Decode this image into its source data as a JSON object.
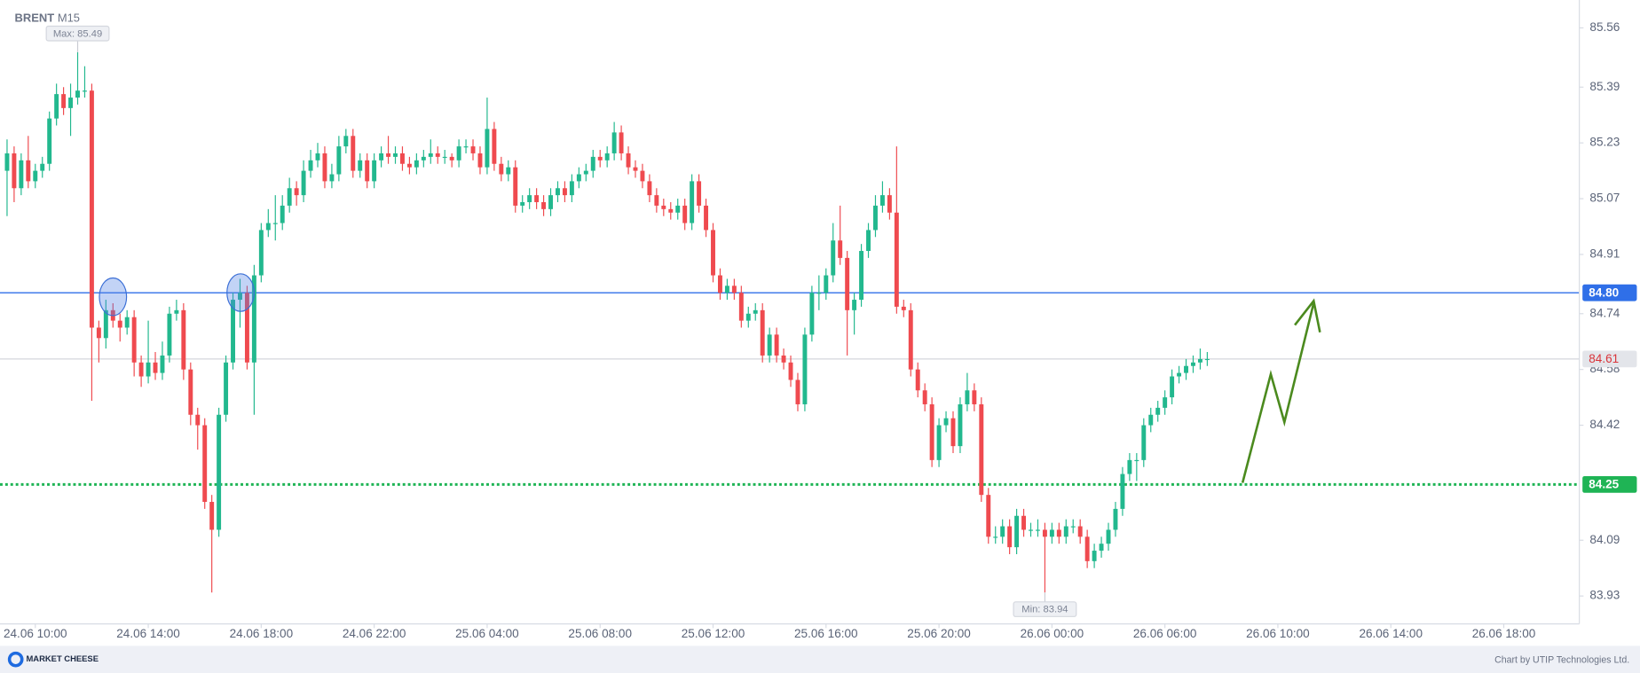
{
  "chart_data": {
    "type": "candlestick",
    "title": "BRENT",
    "subtitle": "M15",
    "footer": "Chart by UTIP Technologies Ltd.",
    "logo": "MARKET CHEESE",
    "up_color": "#22b88e",
    "down_color": "#ef4a4f",
    "xlim": [
      -1,
      222.7
    ],
    "ylim": [
      83.85,
      85.64
    ],
    "yticks": [
      85.56,
      85.39,
      85.23,
      85.07,
      84.91,
      84.74,
      84.58,
      84.42,
      84.09,
      83.93
    ],
    "xticks": [
      {
        "value": 4,
        "label": "24.06 10:00"
      },
      {
        "value": 20,
        "label": "24.06 14:00"
      },
      {
        "value": 36,
        "label": "24.06 18:00"
      },
      {
        "value": 52,
        "label": "24.06 22:00"
      },
      {
        "value": 68,
        "label": "25.06 04:00"
      },
      {
        "value": 84,
        "label": "25.06 08:00"
      },
      {
        "value": 100,
        "label": "25.06 12:00"
      },
      {
        "value": 116,
        "label": "25.06 16:00"
      },
      {
        "value": 132,
        "label": "25.06 20:00"
      },
      {
        "value": 148,
        "label": "26.06 00:00"
      },
      {
        "value": 164,
        "label": "26.06 06:00"
      },
      {
        "value": 180,
        "label": "26.06 10:00"
      },
      {
        "value": 196,
        "label": "26.06 14:00"
      },
      {
        "value": 212,
        "label": "26.06 18:00"
      }
    ],
    "levels": [
      {
        "value": 84.8,
        "label": "84.80",
        "color": "#2f6fe8",
        "style": "solid"
      },
      {
        "value": 84.25,
        "label": "84.25",
        "color": "#1fb455",
        "style": "dotted"
      }
    ],
    "current_price": 84.61,
    "max": {
      "value": 85.49,
      "label": "Max: 85.49"
    },
    "min": {
      "value": 83.94,
      "label": "Min: 83.94"
    },
    "ohlc": [
      [
        85.15,
        85.24,
        85.02,
        85.2
      ],
      [
        85.2,
        85.22,
        85.06,
        85.1
      ],
      [
        85.1,
        85.2,
        85.08,
        85.18
      ],
      [
        85.18,
        85.25,
        85.1,
        85.12
      ],
      [
        85.12,
        85.17,
        85.1,
        85.15
      ],
      [
        85.15,
        85.19,
        85.13,
        85.17
      ],
      [
        85.17,
        85.32,
        85.15,
        85.3
      ],
      [
        85.3,
        85.4,
        85.28,
        85.37
      ],
      [
        85.37,
        85.39,
        85.31,
        85.33
      ],
      [
        85.33,
        85.4,
        85.25,
        85.36
      ],
      [
        85.36,
        85.49,
        85.34,
        85.38
      ],
      [
        85.38,
        85.45,
        85.36,
        85.38
      ],
      [
        85.38,
        85.4,
        84.49,
        84.7
      ],
      [
        84.7,
        84.72,
        84.6,
        84.67
      ],
      [
        84.67,
        84.78,
        84.64,
        84.75
      ],
      [
        84.75,
        84.77,
        84.7,
        84.72
      ],
      [
        84.72,
        84.74,
        84.66,
        84.7
      ],
      [
        84.7,
        84.75,
        84.68,
        84.73
      ],
      [
        84.73,
        84.75,
        84.56,
        84.6
      ],
      [
        84.6,
        84.62,
        84.53,
        84.56
      ],
      [
        84.56,
        84.72,
        84.54,
        84.6
      ],
      [
        84.6,
        84.63,
        84.55,
        84.57
      ],
      [
        84.57,
        84.66,
        84.55,
        84.62
      ],
      [
        84.62,
        84.76,
        84.6,
        84.74
      ],
      [
        84.74,
        84.78,
        84.72,
        84.75
      ],
      [
        84.75,
        84.77,
        84.55,
        84.58
      ],
      [
        84.58,
        84.6,
        84.42,
        84.45
      ],
      [
        84.45,
        84.47,
        84.35,
        84.42
      ],
      [
        84.42,
        84.44,
        84.18,
        84.2
      ],
      [
        84.2,
        84.22,
        83.94,
        84.12
      ],
      [
        84.12,
        84.47,
        84.1,
        84.45
      ],
      [
        84.45,
        84.62,
        84.43,
        84.6
      ],
      [
        84.6,
        84.8,
        84.58,
        84.78
      ],
      [
        84.78,
        84.84,
        84.7,
        84.8
      ],
      [
        84.8,
        84.82,
        84.58,
        84.6
      ],
      [
        84.6,
        84.88,
        84.45,
        84.85
      ],
      [
        84.85,
        85.0,
        84.83,
        84.98
      ],
      [
        84.98,
        85.04,
        84.96,
        85.0
      ],
      [
        85.0,
        85.08,
        84.95,
        85.0
      ],
      [
        85.0,
        85.08,
        84.98,
        85.05
      ],
      [
        85.05,
        85.13,
        85.03,
        85.1
      ],
      [
        85.1,
        85.12,
        85.05,
        85.08
      ],
      [
        85.08,
        85.18,
        85.06,
        85.15
      ],
      [
        85.15,
        85.21,
        85.13,
        85.18
      ],
      [
        85.18,
        85.23,
        85.16,
        85.2
      ],
      [
        85.2,
        85.22,
        85.1,
        85.12
      ],
      [
        85.12,
        85.17,
        85.1,
        85.14
      ],
      [
        85.14,
        85.25,
        85.12,
        85.22
      ],
      [
        85.22,
        85.27,
        85.2,
        85.25
      ],
      [
        85.25,
        85.27,
        85.13,
        85.15
      ],
      [
        85.15,
        85.2,
        85.13,
        85.18
      ],
      [
        85.18,
        85.2,
        85.1,
        85.12
      ],
      [
        85.12,
        85.2,
        85.1,
        85.18
      ],
      [
        85.18,
        85.22,
        85.16,
        85.2
      ],
      [
        85.2,
        85.25,
        85.17,
        85.19
      ],
      [
        85.19,
        85.22,
        85.17,
        85.2
      ],
      [
        85.2,
        85.22,
        85.15,
        85.17
      ],
      [
        85.17,
        85.19,
        85.14,
        85.16
      ],
      [
        85.16,
        85.2,
        85.14,
        85.18
      ],
      [
        85.18,
        85.21,
        85.16,
        85.19
      ],
      [
        85.19,
        85.24,
        85.17,
        85.2
      ],
      [
        85.2,
        85.22,
        85.17,
        85.19
      ],
      [
        85.19,
        85.21,
        85.17,
        85.19
      ],
      [
        85.19,
        85.2,
        85.16,
        85.18
      ],
      [
        85.18,
        85.24,
        85.16,
        85.22
      ],
      [
        85.22,
        85.24,
        85.2,
        85.22
      ],
      [
        85.22,
        85.24,
        85.18,
        85.2
      ],
      [
        85.2,
        85.22,
        85.14,
        85.16
      ],
      [
        85.16,
        85.36,
        85.14,
        85.27
      ],
      [
        85.27,
        85.29,
        85.15,
        85.17
      ],
      [
        85.17,
        85.19,
        85.12,
        85.14
      ],
      [
        85.14,
        85.18,
        85.12,
        85.16
      ],
      [
        85.16,
        85.18,
        85.03,
        85.05
      ],
      [
        85.05,
        85.08,
        85.03,
        85.06
      ],
      [
        85.06,
        85.1,
        85.04,
        85.08
      ],
      [
        85.08,
        85.1,
        85.04,
        85.06
      ],
      [
        85.06,
        85.08,
        85.02,
        85.04
      ],
      [
        85.04,
        85.1,
        85.02,
        85.08
      ],
      [
        85.08,
        85.12,
        85.06,
        85.1
      ],
      [
        85.1,
        85.12,
        85.06,
        85.08
      ],
      [
        85.08,
        85.14,
        85.06,
        85.12
      ],
      [
        85.12,
        85.16,
        85.1,
        85.14
      ],
      [
        85.14,
        85.17,
        85.12,
        85.15
      ],
      [
        85.15,
        85.21,
        85.13,
        85.19
      ],
      [
        85.19,
        85.21,
        85.16,
        85.18
      ],
      [
        85.18,
        85.22,
        85.16,
        85.2
      ],
      [
        85.2,
        85.29,
        85.18,
        85.26
      ],
      [
        85.26,
        85.28,
        85.18,
        85.2
      ],
      [
        85.2,
        85.22,
        85.14,
        85.16
      ],
      [
        85.16,
        85.18,
        85.13,
        85.15
      ],
      [
        85.15,
        85.17,
        85.1,
        85.12
      ],
      [
        85.12,
        85.14,
        85.06,
        85.08
      ],
      [
        85.08,
        85.1,
        85.03,
        85.05
      ],
      [
        85.05,
        85.07,
        85.02,
        85.04
      ],
      [
        85.04,
        85.06,
        85.01,
        85.03
      ],
      [
        85.03,
        85.07,
        85.01,
        85.05
      ],
      [
        85.05,
        85.07,
        84.98,
        85.0
      ],
      [
        85.0,
        85.14,
        84.98,
        85.12
      ],
      [
        85.12,
        85.14,
        85.03,
        85.05
      ],
      [
        85.05,
        85.07,
        84.96,
        84.98
      ],
      [
        84.98,
        85.0,
        84.83,
        84.85
      ],
      [
        84.85,
        84.87,
        84.78,
        84.8
      ],
      [
        84.8,
        84.84,
        84.78,
        84.82
      ],
      [
        84.82,
        84.84,
        84.78,
        84.8
      ],
      [
        84.8,
        84.82,
        84.7,
        84.72
      ],
      [
        84.72,
        84.76,
        84.7,
        84.74
      ],
      [
        84.74,
        84.77,
        84.72,
        84.75
      ],
      [
        84.75,
        84.77,
        84.6,
        84.62
      ],
      [
        84.62,
        84.7,
        84.6,
        84.68
      ],
      [
        84.68,
        84.7,
        84.6,
        84.62
      ],
      [
        84.62,
        84.64,
        84.58,
        84.6
      ],
      [
        84.6,
        84.62,
        84.53,
        84.55
      ],
      [
        84.55,
        84.57,
        84.46,
        84.48
      ],
      [
        84.48,
        84.7,
        84.46,
        84.68
      ],
      [
        84.68,
        84.82,
        84.66,
        84.8
      ],
      [
        84.8,
        84.85,
        84.75,
        84.8
      ],
      [
        84.8,
        84.87,
        84.78,
        84.85
      ],
      [
        84.85,
        85.0,
        84.83,
        84.95
      ],
      [
        84.95,
        85.05,
        84.88,
        84.9
      ],
      [
        84.9,
        84.92,
        84.62,
        84.75
      ],
      [
        84.75,
        84.8,
        84.68,
        84.78
      ],
      [
        84.78,
        84.94,
        84.76,
        84.92
      ],
      [
        84.92,
        85.0,
        84.9,
        84.98
      ],
      [
        84.98,
        85.08,
        84.96,
        85.05
      ],
      [
        85.05,
        85.12,
        85.03,
        85.08
      ],
      [
        85.08,
        85.1,
        85.01,
        85.03
      ],
      [
        85.03,
        85.22,
        84.74,
        84.76
      ],
      [
        84.76,
        84.78,
        84.73,
        84.75
      ],
      [
        84.75,
        84.77,
        84.56,
        84.58
      ],
      [
        84.58,
        84.6,
        84.5,
        84.52
      ],
      [
        84.52,
        84.54,
        84.46,
        84.48
      ],
      [
        84.48,
        84.5,
        84.3,
        84.32
      ],
      [
        84.32,
        84.44,
        84.3,
        84.42
      ],
      [
        84.42,
        84.46,
        84.4,
        84.44
      ],
      [
        84.44,
        84.46,
        84.34,
        84.36
      ],
      [
        84.36,
        84.5,
        84.34,
        84.48
      ],
      [
        84.48,
        84.57,
        84.46,
        84.52
      ],
      [
        84.52,
        84.54,
        84.46,
        84.48
      ],
      [
        84.48,
        84.5,
        84.2,
        84.22
      ],
      [
        84.22,
        84.24,
        84.08,
        84.1
      ],
      [
        84.1,
        84.13,
        84.08,
        84.1
      ],
      [
        84.1,
        84.15,
        84.08,
        84.13
      ],
      [
        84.13,
        84.15,
        84.05,
        84.07
      ],
      [
        84.07,
        84.18,
        84.05,
        84.16
      ],
      [
        84.16,
        84.18,
        84.1,
        84.12
      ],
      [
        84.12,
        84.14,
        84.1,
        84.12
      ],
      [
        84.12,
        84.15,
        84.1,
        84.12
      ],
      [
        84.12,
        84.14,
        83.94,
        84.1
      ],
      [
        84.1,
        84.14,
        84.08,
        84.12
      ],
      [
        84.12,
        84.14,
        84.08,
        84.1
      ],
      [
        84.1,
        84.15,
        84.08,
        84.13
      ],
      [
        84.13,
        84.15,
        84.11,
        84.13
      ],
      [
        84.13,
        84.15,
        84.08,
        84.1
      ],
      [
        84.1,
        84.12,
        84.01,
        84.03
      ],
      [
        84.03,
        84.08,
        84.01,
        84.06
      ],
      [
        84.06,
        84.1,
        84.04,
        84.08
      ],
      [
        84.08,
        84.14,
        84.06,
        84.12
      ],
      [
        84.12,
        84.2,
        84.1,
        84.18
      ],
      [
        84.18,
        84.3,
        84.16,
        84.28
      ],
      [
        84.28,
        84.34,
        84.26,
        84.32
      ],
      [
        84.32,
        84.34,
        84.26,
        84.32
      ],
      [
        84.32,
        84.44,
        84.3,
        84.42
      ],
      [
        84.42,
        84.47,
        84.4,
        84.45
      ],
      [
        84.45,
        84.49,
        84.43,
        84.47
      ],
      [
        84.47,
        84.52,
        84.45,
        84.5
      ],
      [
        84.5,
        84.58,
        84.48,
        84.56
      ],
      [
        84.56,
        84.59,
        84.54,
        84.57
      ],
      [
        84.57,
        84.61,
        84.55,
        84.59
      ],
      [
        84.59,
        84.62,
        84.57,
        84.6
      ],
      [
        84.6,
        84.64,
        84.58,
        84.61
      ],
      [
        84.61,
        84.63,
        84.59,
        84.61
      ]
    ]
  }
}
